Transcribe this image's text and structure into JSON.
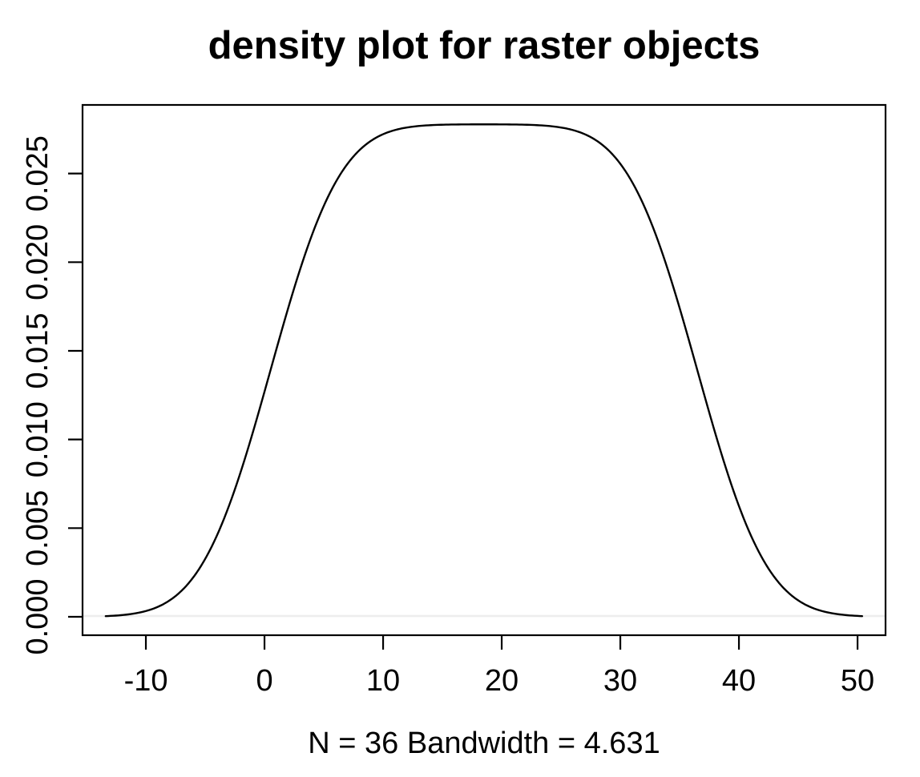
{
  "title": "density plot for raster objects",
  "xlabel": "N = 36   Bandwidth = 4.631",
  "colors": {
    "curve": "#000000",
    "axis": "#000000",
    "text": "#000000",
    "zero_baseline": "#ededed",
    "background": "#ffffff"
  },
  "chart_data": {
    "type": "line",
    "subtype": "kernel-density",
    "title": "density plot for raster objects",
    "xlabel": "N = 36   Bandwidth = 4.631",
    "ylabel": "",
    "n": 36,
    "bandwidth": 4.631,
    "grid": false,
    "legend": "none",
    "xlim": [
      -15.34,
      52.36
    ],
    "ylim": [
      -0.00104,
      0.02887
    ],
    "x_ticks": [
      -10,
      0,
      10,
      20,
      30,
      40,
      50
    ],
    "x_tick_labels": [
      "-10",
      "0",
      "10",
      "20",
      "30",
      "40",
      "50"
    ],
    "y_ticks": [
      0,
      0.005,
      0.01,
      0.015,
      0.02,
      0.025
    ],
    "y_tick_labels": [
      "0.000",
      "0.005",
      "0.010",
      "0.015",
      "0.020",
      "0.025"
    ],
    "peak_density": 0.02778,
    "zero_baseline": true,
    "kde_model": {
      "kernel": "gaussian",
      "support_min": 0.5,
      "support_max": 36.5,
      "bandwidth": 4.631,
      "x_start": -13.39,
      "x_end": 50.39
    },
    "curve_points": [
      [
        -13.39,
        4e-05
      ],
      [
        -11,
        0.00018
      ],
      [
        -9,
        0.00056
      ],
      [
        -7,
        0.00146
      ],
      [
        -5,
        0.00326
      ],
      [
        -3,
        0.00625
      ],
      [
        -1,
        0.01036
      ],
      [
        1,
        0.01508
      ],
      [
        3,
        0.01959
      ],
      [
        5,
        0.02318
      ],
      [
        7,
        0.02555
      ],
      [
        9,
        0.02685
      ],
      [
        11,
        0.02745
      ],
      [
        13,
        0.02768
      ],
      [
        15,
        0.02775
      ],
      [
        17,
        0.02777
      ],
      [
        18.5,
        0.02778
      ],
      [
        20,
        0.02777
      ],
      [
        22,
        0.02775
      ],
      [
        24,
        0.02768
      ],
      [
        26,
        0.02745
      ],
      [
        28,
        0.02685
      ],
      [
        30,
        0.02555
      ],
      [
        32,
        0.02318
      ],
      [
        34,
        0.01959
      ],
      [
        36,
        0.01508
      ],
      [
        38,
        0.01036
      ],
      [
        40,
        0.00625
      ],
      [
        42,
        0.00326
      ],
      [
        44,
        0.00146
      ],
      [
        46,
        0.00056
      ],
      [
        48,
        0.00018
      ],
      [
        50.39,
        4e-05
      ]
    ]
  }
}
